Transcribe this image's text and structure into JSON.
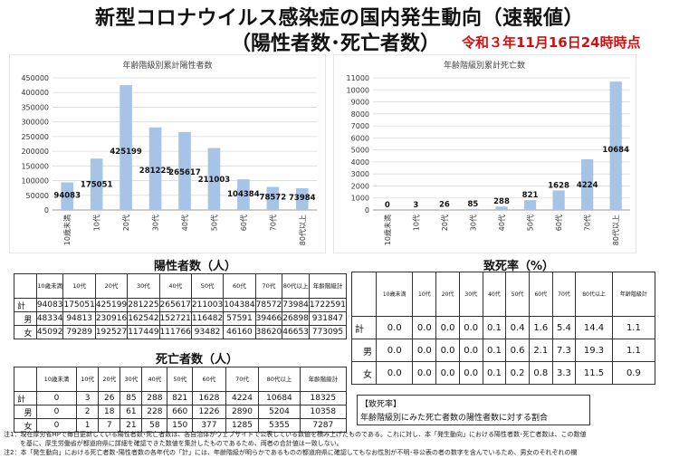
{
  "title_line1": "新型コロナウイルス感染症の国内発生動向（速報値）",
  "title_line2": "（陽性者数･死亡者数）",
  "date_label": "令和３年11月16日24時時点",
  "chart_data": [
    {
      "type": "bar",
      "title": "年齢階級別累計陽性者数",
      "categories": [
        "10歳未満",
        "10代",
        "20代",
        "30代",
        "40代",
        "50代",
        "60代",
        "70代",
        "80代以上"
      ],
      "values": [
        94083,
        175051,
        425199,
        281225,
        265617,
        211003,
        104384,
        78572,
        73984
      ],
      "yticks": [
        "0",
        "50000",
        "100000",
        "150000",
        "200000",
        "250000",
        "300000",
        "350000",
        "400000",
        "450000"
      ],
      "ylim": [
        0,
        450000
      ],
      "color": "#a7c3e6"
    },
    {
      "type": "bar",
      "title": "年齢階級別累計死亡数",
      "categories": [
        "10歳未満",
        "10代",
        "20代",
        "30代",
        "40代",
        "50代",
        "60代",
        "70代",
        "80代以上"
      ],
      "values": [
        0,
        3,
        26,
        85,
        288,
        821,
        1628,
        4224,
        10684
      ],
      "yticks": [
        "0",
        "1000",
        "2000",
        "3000",
        "4000",
        "5000",
        "6000",
        "7000",
        "8000",
        "9000",
        "10000",
        "11000"
      ],
      "ylim": [
        0,
        11000
      ],
      "color": "#a7c3e6"
    }
  ],
  "positive": {
    "title": "陽性者数（人）",
    "headers": [
      "10歳未満",
      "10代",
      "20代",
      "30代",
      "40代",
      "50代",
      "60代",
      "70代",
      "80代以上",
      "年齢階級計"
    ],
    "rows": [
      {
        "label": "計",
        "values": [
          "94083",
          "175051",
          "425199",
          "281225",
          "265617",
          "211003",
          "104384",
          "78572",
          "73984",
          "1722591"
        ]
      },
      {
        "label": "男",
        "values": [
          "48334",
          "94813",
          "230916",
          "162542",
          "152721",
          "116482",
          "57591",
          "39466",
          "26898",
          "931847"
        ]
      },
      {
        "label": "女",
        "values": [
          "45092",
          "79289",
          "192527",
          "117449",
          "111766",
          "93482",
          "46160",
          "38620",
          "46653",
          "773095"
        ]
      }
    ]
  },
  "deaths": {
    "title": "死亡者数（人）",
    "headers": [
      "10歳未満",
      "10代",
      "20代",
      "30代",
      "40代",
      "50代",
      "60代",
      "70代",
      "80代以上",
      "年齢階級計"
    ],
    "rows": [
      {
        "label": "計",
        "values": [
          "0",
          "3",
          "26",
          "85",
          "288",
          "821",
          "1628",
          "4224",
          "10684",
          "18325"
        ]
      },
      {
        "label": "男",
        "values": [
          "0",
          "2",
          "18",
          "61",
          "228",
          "660",
          "1226",
          "2890",
          "5204",
          "10358"
        ]
      },
      {
        "label": "女",
        "values": [
          "0",
          "1",
          "7",
          "21",
          "58",
          "150",
          "377",
          "1285",
          "5355",
          "7287"
        ]
      }
    ]
  },
  "fatality": {
    "title": "致死率（%）",
    "headers": [
      "10歳未満",
      "10代",
      "20代",
      "30代",
      "40代",
      "50代",
      "60代",
      "70代",
      "80代以上",
      "年齢階級計"
    ],
    "rows": [
      {
        "label": "計",
        "values": [
          "0.0",
          "0.0",
          "0.0",
          "0.0",
          "0.1",
          "0.4",
          "1.6",
          "5.4",
          "14.4",
          "1.1"
        ]
      },
      {
        "label": "男",
        "values": [
          "0.0",
          "0.0",
          "0.0",
          "0.0",
          "0.1",
          "0.6",
          "2.1",
          "7.3",
          "19.3",
          "1.1"
        ]
      },
      {
        "label": "女",
        "values": [
          "0.0",
          "0.0",
          "0.0",
          "0.0",
          "0.1",
          "0.2",
          "0.8",
          "3.3",
          "11.5",
          "0.9"
        ]
      }
    ]
  },
  "note_box": {
    "heading": "【致死率】",
    "text": "年齢階級別にみた死亡者数の陽性者数に対する割合"
  },
  "footnotes": [
    "注1：現在厚労省HPで毎日更新している陽性者数･死亡者数は、各自治体がウェブサイトで公表している数値を積み上げたものである。これに対し、本「発生動向」における陽性者数･死亡者数は、この数値",
    "を基に、厚生労働省が都道府県に詳細を確認できた数値を集計したものであるため、両者の合計値は一致しない。",
    "注2：本「発生動向」における死亡者数･陽性者数の各年代の「計」には、年齢階級が明らかであるものの都道府県に確認してもなお性別が不明･非公表の者の数字を含んでいるため、男女のそれぞれの欄"
  ]
}
